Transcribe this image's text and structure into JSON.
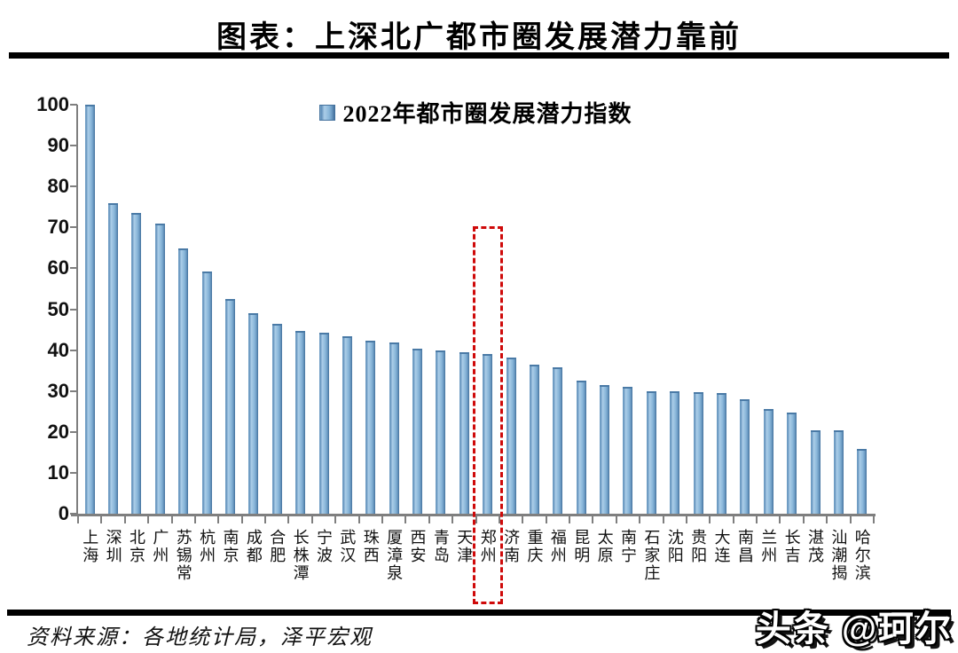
{
  "header": {
    "title": "图表：上深北广都市圈发展潜力靠前"
  },
  "chart_data": {
    "type": "bar",
    "title": "图表：上深北广都市圈发展潜力靠前",
    "legend": [
      "2022年都市圈发展潜力指数"
    ],
    "legend_position": "top-center",
    "categories": [
      "上海",
      "深圳",
      "北京",
      "广州",
      "苏锡常",
      "杭州",
      "南京",
      "成都",
      "合肥",
      "长株潭",
      "宁波",
      "武汉",
      "珠西",
      "厦漳泉",
      "西安",
      "青岛",
      "天津",
      "郑州",
      "济南",
      "重庆",
      "福州",
      "昆明",
      "太原",
      "南宁",
      "石家庄",
      "沈阳",
      "贵阳",
      "大连",
      "南昌",
      "兰州",
      "长吉",
      "湛茂",
      "汕潮揭",
      "哈尔滨"
    ],
    "values": [
      100,
      76,
      73.5,
      71,
      64.9,
      59.2,
      52.6,
      49.1,
      46.4,
      44.6,
      44.2,
      43.4,
      42.2,
      41.8,
      40.4,
      39.9,
      39.5,
      39,
      38.1,
      36.4,
      35.9,
      32.5,
      31.4,
      31,
      30,
      29.9,
      29.8,
      29.4,
      27.9,
      25.5,
      24.8,
      20.4,
      20.3,
      15.8
    ],
    "xlabel": "",
    "ylabel": "",
    "ylim": [
      0,
      100
    ],
    "yticks": [
      0,
      10,
      20,
      30,
      40,
      50,
      60,
      70,
      80,
      90,
      100
    ],
    "grid": false,
    "bar_color": "#7fb2d6",
    "bar_edge_color": "#44719d",
    "highlight": {
      "category": "郑州",
      "index": 17,
      "box_color": "#cf0a0a",
      "box_style": "dashed"
    }
  },
  "footer": {
    "source": "资料来源：各地统计局，泽平宏观"
  },
  "watermark": {
    "text": "头条 @珂尔"
  }
}
